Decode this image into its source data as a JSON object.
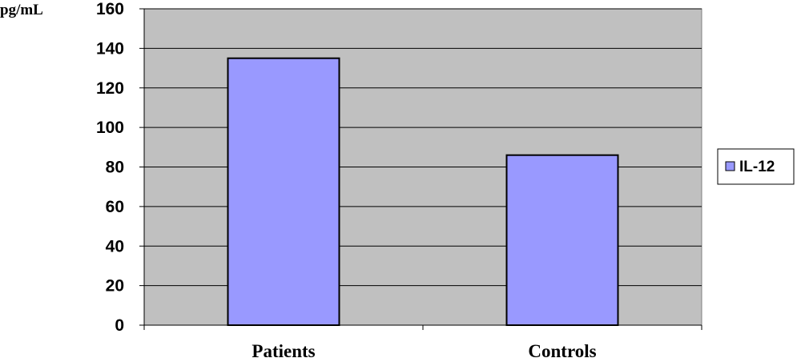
{
  "chart_data": {
    "type": "bar",
    "categories": [
      "Patients",
      "Controls"
    ],
    "series": [
      {
        "name": "IL-12",
        "values": [
          135,
          86
        ],
        "color": "#9999FF"
      }
    ],
    "ylabel": "pg/mL",
    "ylim": [
      0,
      160
    ],
    "yticks": [
      "0",
      "20",
      "40",
      "60",
      "80",
      "100",
      "120",
      "140",
      "160"
    ],
    "grid": true,
    "plot_background": "#C0C0C0",
    "legend_position": "right"
  }
}
